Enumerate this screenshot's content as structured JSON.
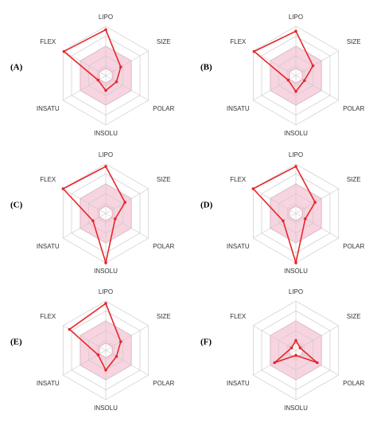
{
  "chart_data": [
    {
      "type": "radar",
      "title": "(A)",
      "categories": [
        "LIPO",
        "SIZE",
        "POLAR",
        "INSOLU",
        "INSATU",
        "FLEX"
      ],
      "values": [
        0.93,
        0.35,
        0.25,
        0.3,
        0.18,
        0.98
      ],
      "color": "#e8262a",
      "rlim": [
        0,
        1
      ],
      "rgrid": [
        0.2,
        0.4,
        0.6,
        0.8,
        1
      ],
      "optimal_range": [
        0.15,
        0.6
      ],
      "optimal_color": "#f4c2d3"
    },
    {
      "type": "radar",
      "title": "(B)",
      "categories": [
        "LIPO",
        "SIZE",
        "POLAR",
        "INSOLU",
        "INSATU",
        "FLEX"
      ],
      "values": [
        0.9,
        0.4,
        0.2,
        0.32,
        0.18,
        0.98
      ],
      "color": "#e8262a",
      "rlim": [
        0,
        1
      ],
      "rgrid": [
        0.2,
        0.4,
        0.6,
        0.8,
        1
      ],
      "optimal_range": [
        0.15,
        0.6
      ],
      "optimal_color": "#f4c2d3"
    },
    {
      "type": "radar",
      "title": "(C)",
      "categories": [
        "LIPO",
        "SIZE",
        "POLAR",
        "INSOLU",
        "INSATU",
        "FLEX"
      ],
      "values": [
        0.95,
        0.45,
        0.22,
        1.0,
        0.3,
        1.0
      ],
      "color": "#e8262a",
      "rlim": [
        0,
        1
      ],
      "rgrid": [
        0.2,
        0.4,
        0.6,
        0.8,
        1
      ],
      "optimal_range": [
        0.15,
        0.6
      ],
      "optimal_color": "#f4c2d3"
    },
    {
      "type": "radar",
      "title": "(D)",
      "categories": [
        "LIPO",
        "SIZE",
        "POLAR",
        "INSOLU",
        "INSATU",
        "FLEX"
      ],
      "values": [
        0.95,
        0.45,
        0.22,
        1.0,
        0.3,
        1.0
      ],
      "color": "#e8262a",
      "rlim": [
        0,
        1
      ],
      "rgrid": [
        0.2,
        0.4,
        0.6,
        0.8,
        1
      ],
      "optimal_range": [
        0.15,
        0.6
      ],
      "optimal_color": "#f4c2d3"
    },
    {
      "type": "radar",
      "title": "(E)",
      "categories": [
        "LIPO",
        "SIZE",
        "POLAR",
        "INSOLU",
        "INSATU",
        "FLEX"
      ],
      "values": [
        0.95,
        0.35,
        0.25,
        0.4,
        0.18,
        0.85
      ],
      "color": "#e8262a",
      "rlim": [
        0,
        1
      ],
      "rgrid": [
        0.2,
        0.4,
        0.6,
        0.8,
        1
      ],
      "optimal_range": [
        0.15,
        0.6
      ],
      "optimal_color": "#f4c2d3"
    },
    {
      "type": "radar",
      "title": "(F)",
      "categories": [
        "LIPO",
        "SIZE",
        "POLAR",
        "INSOLU",
        "INSATU",
        "FLEX"
      ],
      "values": [
        0.2,
        0.1,
        0.5,
        0.1,
        0.5,
        0.1
      ],
      "color": "#e8262a",
      "rlim": [
        0,
        1
      ],
      "rgrid": [
        0.2,
        0.4,
        0.6,
        0.8,
        1
      ],
      "optimal_range": [
        0.15,
        0.6
      ],
      "optimal_color": "#f4c2d3"
    }
  ]
}
